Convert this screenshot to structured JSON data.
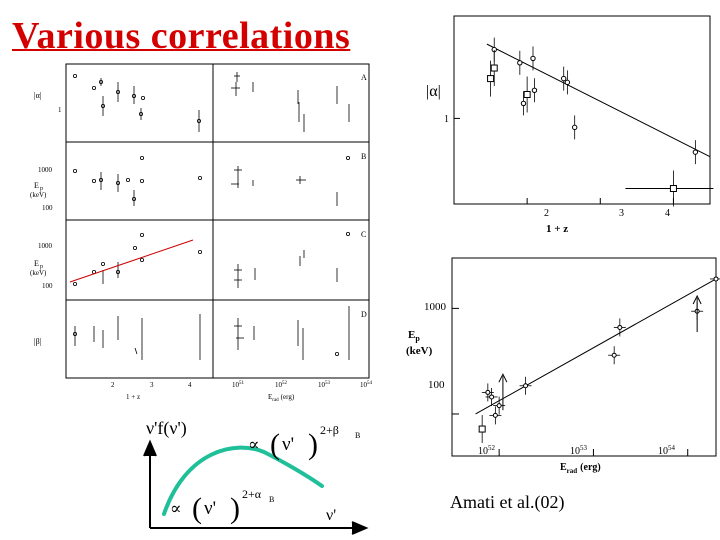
{
  "slide": {
    "title": "Various correlations",
    "citation": "Amati et al.(02)"
  },
  "grid_figure": {
    "panel_letters": [
      "A",
      "B",
      "C",
      "D"
    ],
    "row_labels": {
      "alpha": "|α|",
      "ep": "E",
      "ep_sub": "p",
      "kev": "(keV)",
      "beta": "|β|"
    },
    "left_ticks": {
      "alpha_1": "1",
      "ep_1000": "1000",
      "ep_100": "100",
      "ep2_1000": "1000",
      "ep2_100": "100"
    },
    "x_ticks_left": [
      "2",
      "3",
      "4"
    ],
    "x_ticks_right": [
      "10",
      "10",
      "10"
    ],
    "x_tick_exps": [
      "51",
      "52",
      "53",
      "54"
    ],
    "x_ticks_right4": "10",
    "xlabel_left": "1 + z",
    "xlabel_right_main": "E",
    "xlabel_right_sub": "rad",
    "xlabel_right_unit": "(erg)",
    "fit_color": "#cc0000"
  },
  "chart_data": [
    {
      "type": "scatter",
      "title": "",
      "xlabel": "1 + z",
      "ylabel": "|α|",
      "xlim": [
        1.0,
        4.5
      ],
      "ylim_log": [
        0.45,
        2.6
      ],
      "x_ticks": [
        "2",
        "3",
        "4"
      ],
      "y_ticks": [
        "1"
      ],
      "points": [
        {
          "x": 1.55,
          "y": 1.9
        },
        {
          "x": 1.9,
          "y": 1.68
        },
        {
          "x": 2.08,
          "y": 1.75
        },
        {
          "x": 1.95,
          "y": 1.15
        },
        {
          "x": 2.1,
          "y": 1.3
        },
        {
          "x": 2.5,
          "y": 1.45
        },
        {
          "x": 2.55,
          "y": 1.4
        },
        {
          "x": 2.65,
          "y": 0.92
        },
        {
          "x": 4.3,
          "y": 0.73
        }
      ],
      "squares": [
        {
          "x": 1.55,
          "y": 1.6
        },
        {
          "x": 1.5,
          "y": 1.45
        },
        {
          "x": 2.0,
          "y": 1.25
        },
        {
          "x": 4.0,
          "y": 0.52
        }
      ],
      "fit": {
        "x": [
          1.45,
          4.5
        ],
        "y": [
          2.0,
          0.7
        ]
      }
    },
    {
      "type": "scatter",
      "title": "",
      "xlabel": "E rad (erg)",
      "ylabel": "Ep (keV)",
      "xlim_log": [
        51.5,
        54.3
      ],
      "ylim_log": [
        40,
        3000
      ],
      "x_ticks": [
        "10^52",
        "10^53",
        "10^54"
      ],
      "y_ticks": [
        "100",
        "1000"
      ],
      "points": [
        {
          "x": 51.88,
          "y": 160
        },
        {
          "x": 51.92,
          "y": 145
        },
        {
          "x": 51.96,
          "y": 97
        },
        {
          "x": 52.0,
          "y": 120
        },
        {
          "x": 52.28,
          "y": 185
        },
        {
          "x": 53.22,
          "y": 360
        },
        {
          "x": 53.28,
          "y": 660
        },
        {
          "x": 54.1,
          "y": 940
        },
        {
          "x": 54.3,
          "y": 1900
        }
      ],
      "squares": [
        {
          "x": 51.82,
          "y": 72
        }
      ],
      "limits": [
        {
          "x": 52.04,
          "y": 200
        },
        {
          "x": 54.1,
          "y": 1100
        }
      ],
      "fit": {
        "x": [
          51.75,
          54.3
        ],
        "y": [
          100,
          1900
        ]
      }
    }
  ],
  "spectrum_sketch": {
    "y_axis": "ν'f(ν')",
    "x_axis": "ν'",
    "upper_formula": {
      "prop": "∝",
      "base": "ν'",
      "exp": "2+β",
      "sub": "B"
    },
    "lower_formula": {
      "prop": "∝",
      "base": "ν'",
      "exp": "2+α",
      "sub": "B"
    },
    "curve_color": "#1fbf9a"
  },
  "plot_labels": {
    "top_right": {
      "ylabel": "|α|",
      "ytick1": "1",
      "xticks": [
        "2",
        "3",
        "4"
      ],
      "xlabel": "1 + z"
    },
    "bottom_right": {
      "ylabel1": "E",
      "ylabel1_sub": "p",
      "ylabel2": "(keV)",
      "yticks": [
        "1000",
        "100"
      ],
      "xtick_base": "10",
      "xtick_exps": [
        "52",
        "53",
        "54"
      ],
      "xlabel": "E",
      "xlabel_sub": "rad",
      "xlabel_unit": "(erg)"
    }
  }
}
